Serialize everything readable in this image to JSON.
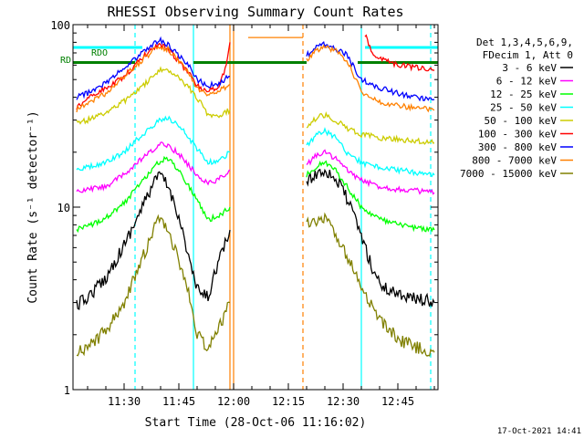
{
  "chart_data": {
    "type": "line",
    "title": "RHESSI Observing Summary Count Rates",
    "xlabel": "Start Time (28-Oct-06 11:16:02)",
    "ylabel": "Count Rate (s⁻¹ detector⁻¹)",
    "yscale": "log",
    "ylim": [
      1,
      100
    ],
    "xlim": [
      "11:16",
      "12:56"
    ],
    "x_ticks": [
      "11:30",
      "11:45",
      "12:00",
      "12:15",
      "12:30",
      "12:45"
    ],
    "y_ticks": [
      "1",
      "10",
      "100"
    ],
    "legend": {
      "placement": "right",
      "header": [
        "Det 1,3,4,5,6,9,",
        "FDecim 1, Att 0"
      ],
      "entries": [
        "3 - 6 keV",
        "6 - 12 keV",
        "12 - 25 keV",
        "25 - 50 keV",
        "50 - 100 keV",
        "100 - 300 keV",
        "300 - 800 keV",
        "800 - 7000 keV",
        "7000 - 15000 keV"
      ]
    },
    "annotations": [
      "RDO",
      "RD"
    ],
    "footer_date": "17-Oct-2021 14:41",
    "colors": [
      "#000000",
      "#ff00ff",
      "#00ff00",
      "#00ffff",
      "#cccc00",
      "#ff0000",
      "#0000ff",
      "#ff8000",
      "#808000"
    ],
    "series": [
      {
        "name": "3 - 6 keV",
        "color": "#000000",
        "segments": [
          {
            "x": [
              "11:17",
              "11:20",
              "11:25",
              "11:30",
              "11:35",
              "11:38",
              "11:40",
              "11:42",
              "11:45",
              "11:47",
              "11:50",
              "11:53",
              "11:55",
              "11:58",
              "11:59"
            ],
            "y": [
              2.9,
              3.2,
              4.1,
              6.2,
              10,
              13.5,
              15,
              13,
              9,
              6,
              3.5,
              3.2,
              4.5,
              6.5,
              7.5
            ]
          },
          {
            "x": [
              "12:20",
              "12:22",
              "12:25",
              "12:27",
              "12:30",
              "12:32",
              "12:35",
              "12:38",
              "12:41",
              "12:45",
              "12:48",
              "12:52",
              "12:55"
            ],
            "y": [
              13.5,
              15,
              16,
              15,
              12.5,
              10,
              7,
              4.6,
              3.6,
              3.4,
              3.2,
              3.1,
              3
            ]
          }
        ]
      },
      {
        "name": "6 - 12 keV",
        "color": "#ff00ff",
        "segments": [
          {
            "x": [
              "11:17",
              "11:20",
              "11:25",
              "11:30",
              "11:35",
              "11:40",
              "11:42",
              "11:45",
              "11:50",
              "11:53",
              "11:55",
              "11:58",
              "11:59"
            ],
            "y": [
              12,
              12.5,
              13,
              15,
              18.5,
              22,
              22,
              19.5,
              15,
              13.5,
              14,
              15,
              16
            ]
          },
          {
            "x": [
              "12:20",
              "12:23",
              "12:25",
              "12:28",
              "12:31",
              "12:35",
              "12:40",
              "12:45",
              "12:50",
              "12:55"
            ],
            "y": [
              17,
              19.5,
              20,
              18.5,
              16,
              14,
              13,
              12.5,
              12.3,
              12
            ]
          }
        ]
      },
      {
        "name": "12 - 25 keV",
        "color": "#00ff00",
        "segments": [
          {
            "x": [
              "11:17",
              "11:20",
              "11:25",
              "11:30",
              "11:35",
              "11:40",
              "11:42",
              "11:45",
              "11:50",
              "11:53",
              "11:56",
              "11:59"
            ],
            "y": [
              7.5,
              7.8,
              8.8,
              10.5,
              14,
              18,
              18.5,
              16,
              11,
              8.5,
              9,
              10
            ]
          },
          {
            "x": [
              "12:20",
              "12:23",
              "12:25",
              "12:28",
              "12:31",
              "12:35",
              "12:40",
              "12:45",
              "12:50",
              "12:55"
            ],
            "y": [
              15,
              17,
              17.5,
              16,
              13,
              10,
              8.6,
              8,
              7.7,
              7.5
            ]
          }
        ]
      },
      {
        "name": "25 - 50 keV",
        "color": "#00ffff",
        "segments": [
          {
            "x": [
              "11:17",
              "11:20",
              "11:25",
              "11:30",
              "11:35",
              "11:40",
              "11:42",
              "11:45",
              "11:50",
              "11:53",
              "11:56",
              "11:59"
            ],
            "y": [
              16,
              16.5,
              17.5,
              20,
              25,
              30,
              31,
              28,
              21,
              17.5,
              18,
              20
            ]
          },
          {
            "x": [
              "12:20",
              "12:23",
              "12:25",
              "12:28",
              "12:31",
              "12:35",
              "12:40",
              "12:45",
              "12:50",
              "12:55"
            ],
            "y": [
              22,
              25,
              26,
              24,
              20,
              17.5,
              16.5,
              16,
              15.5,
              15
            ]
          }
        ]
      },
      {
        "name": "50 - 100 keV",
        "color": "#cccc00",
        "segments": [
          {
            "x": [
              "11:17",
              "11:20",
              "11:25",
              "11:30",
              "11:35",
              "11:40",
              "11:42",
              "11:45",
              "11:50",
              "11:53",
              "11:56",
              "11:59"
            ],
            "y": [
              29,
              30,
              33,
              38,
              46,
              56,
              57,
              52,
              40,
              32,
              32,
              34
            ]
          },
          {
            "x": [
              "12:20",
              "12:23",
              "12:25",
              "12:28",
              "12:31",
              "12:35",
              "12:40",
              "12:45",
              "12:50",
              "12:55"
            ],
            "y": [
              28,
              31,
              32,
              30,
              27,
              25,
              24,
              23.5,
              23,
              22.5
            ]
          }
        ]
      },
      {
        "name": "100 - 300 keV",
        "color": "#ff0000",
        "segments": [
          {
            "x": [
              "11:17",
              "11:20",
              "11:25",
              "11:30",
              "11:35",
              "11:38",
              "11:40",
              "11:42",
              "11:45",
              "11:48",
              "11:50",
              "11:53",
              "11:56",
              "11:58",
              "11:59"
            ],
            "y": [
              35,
              40,
              45,
              52,
              66,
              75,
              78,
              74,
              63,
              53,
              46,
              43,
              46,
              60,
              80
            ]
          },
          {
            "x": [
              "12:36",
              "12:38",
              "12:40",
              "12:43",
              "12:46",
              "12:50",
              "12:55"
            ],
            "y": [
              88,
              70,
              65,
              62,
              60,
              58,
              56
            ]
          }
        ]
      },
      {
        "name": "300 - 800 keV",
        "color": "#0000ff",
        "segments": [
          {
            "x": [
              "11:17",
              "11:20",
              "11:25",
              "11:30",
              "11:35",
              "11:38",
              "11:40",
              "11:42",
              "11:45",
              "11:48",
              "11:50",
              "11:53",
              "11:56",
              "11:59"
            ],
            "y": [
              40,
              42,
              48,
              58,
              70,
              78,
              82,
              78,
              68,
              58,
              50,
              46,
              48,
              52
            ]
          },
          {
            "x": [
              "12:20",
              "12:23",
              "12:25",
              "12:28",
              "12:31",
              "12:35",
              "12:40",
              "12:45",
              "12:50",
              "12:55"
            ],
            "y": [
              68,
              76,
              78,
              74,
              68,
              50,
              45,
              42,
              40,
              39
            ]
          }
        ]
      },
      {
        "name": "800 - 7000 keV",
        "color": "#ff8000",
        "segments": [
          {
            "x": [
              "11:17",
              "11:20",
              "11:25",
              "11:30",
              "11:35",
              "11:38",
              "11:40",
              "11:42",
              "11:45",
              "11:48",
              "11:50",
              "11:53",
              "11:56",
              "11:59"
            ],
            "y": [
              34,
              37,
              42,
              52,
              64,
              72,
              76,
              73,
              63,
              53,
              45,
              41,
              43,
              47
            ]
          },
          {
            "x": [
              "12:04",
              "12:19"
            ],
            "y": [
              85,
              85
            ]
          },
          {
            "x": [
              "12:20",
              "12:23",
              "12:25",
              "12:28",
              "12:31",
              "12:35",
              "12:40",
              "12:45",
              "12:50",
              "12:55"
            ],
            "y": [
              64,
              73,
              76,
              72,
              64,
              43,
              38,
              36,
              35,
              34
            ]
          }
        ]
      },
      {
        "name": "7000 - 15000 keV",
        "color": "#808000",
        "segments": [
          {
            "x": [
              "11:17",
              "11:20",
              "11:25",
              "11:30",
              "11:35",
              "11:38",
              "11:40",
              "11:42",
              "11:45",
              "11:48",
              "11:50",
              "11:53",
              "11:56",
              "11:59"
            ],
            "y": [
              1.6,
              1.7,
              2.1,
              3,
              5.2,
              7.6,
              8.8,
              7.6,
              5,
              3.2,
              2,
              1.7,
              2.2,
              3
            ]
          },
          {
            "x": [
              "12:20",
              "12:22",
              "12:25",
              "12:28",
              "12:31",
              "12:35",
              "12:40",
              "12:45",
              "12:50",
              "12:55"
            ],
            "y": [
              8,
              8.6,
              8.5,
              7,
              5.5,
              3.6,
              2.4,
              1.9,
              1.7,
              1.6
            ]
          }
        ]
      }
    ],
    "status_bars": [
      {
        "name": "RDO",
        "color": "#00ffff",
        "y": 75,
        "segments": [
          [
            "11:16",
            "11:35"
          ],
          [
            "12:36",
            "12:56"
          ]
        ]
      },
      {
        "name": "RD",
        "color": "#008000",
        "y": 62,
        "segments": [
          [
            "11:16",
            "11:33"
          ],
          [
            "11:49",
            "12:20"
          ],
          [
            "12:34",
            "12:56"
          ]
        ]
      }
    ],
    "vlines": [
      {
        "x": "11:33",
        "color": "#00ffff",
        "style": "dashed"
      },
      {
        "x": "11:49",
        "color": "#00ffff",
        "style": "solid"
      },
      {
        "x": "11:59",
        "color": "#ff8000",
        "style": "solid"
      },
      {
        "x": "12:00",
        "color": "#ff8000",
        "style": "solid"
      },
      {
        "x": "12:19",
        "color": "#ff8000",
        "style": "dashed"
      },
      {
        "x": "12:35",
        "color": "#00ffff",
        "style": "solid"
      },
      {
        "x": "12:54",
        "color": "#00ffff",
        "style": "dashed"
      }
    ]
  }
}
